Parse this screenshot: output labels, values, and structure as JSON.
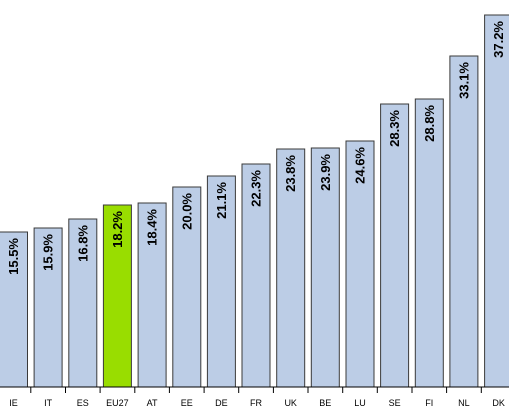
{
  "chart_data": {
    "type": "bar",
    "categories": [
      "IE",
      "IT",
      "ES",
      "EU27",
      "AT",
      "EE",
      "DE",
      "FR",
      "UK",
      "BE",
      "LU",
      "SE",
      "FI",
      "NL",
      "DK"
    ],
    "values": [
      15.5,
      15.9,
      16.8,
      18.2,
      18.4,
      20.0,
      21.1,
      22.3,
      23.8,
      23.9,
      24.6,
      28.3,
      28.8,
      33.1,
      37.2
    ],
    "value_labels": [
      "15.5%",
      "15.9%",
      "16.8%",
      "18.2%",
      "18.4%",
      "20.0%",
      "21.1%",
      "22.3%",
      "23.8%",
      "23.9%",
      "24.6%",
      "28.3%",
      "28.8%",
      "33.1%",
      "37.2%"
    ],
    "highlight": "EU27",
    "colors": {
      "bar": "#bccde6",
      "highlight": "#99dd00",
      "outline": "#3a3a3a"
    },
    "ylim": [
      0,
      38
    ],
    "grid": false,
    "legend": "none"
  }
}
